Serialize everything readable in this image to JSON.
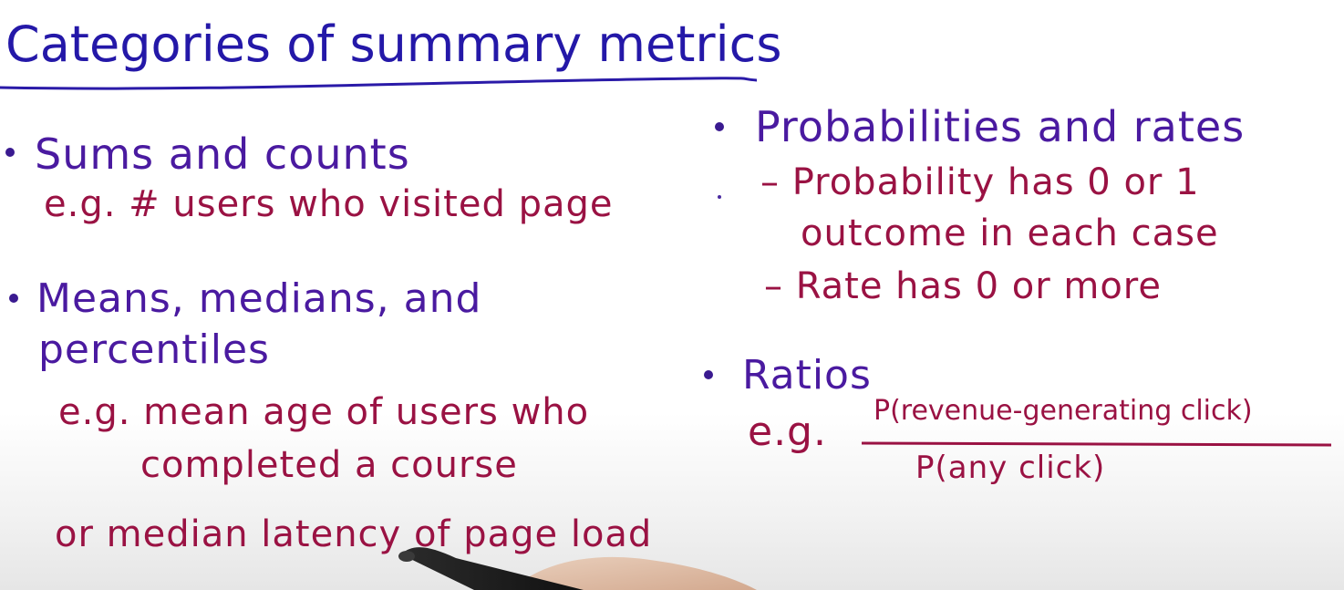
{
  "title": "Categories of summary metrics",
  "left": {
    "sums_heading": "Sums and counts",
    "sums_example": "e.g. # users who visited page",
    "means_heading_line1": "Means, medians, and",
    "means_heading_line2": "percentiles",
    "means_example_line1": "e.g. mean age of users who",
    "means_example_line2": "completed a course",
    "means_example_line3": "or median latency of page load"
  },
  "right": {
    "prob_heading": "Probabilities and rates",
    "prob_item1_line1": "– Probability has 0 or 1",
    "prob_item1_line2": "outcome in each case",
    "prob_item2": "– Rate has 0 or more",
    "ratios_heading": "Ratios",
    "ratios_eg": "e.g.",
    "ratio_numerator": "P(revenue-generating click)",
    "ratio_denominator": "P(any click)"
  },
  "colors": {
    "title": "#2418a8",
    "heading": "#4a1aa0",
    "example": "#9a1243",
    "underline": "#2a1aa8"
  }
}
